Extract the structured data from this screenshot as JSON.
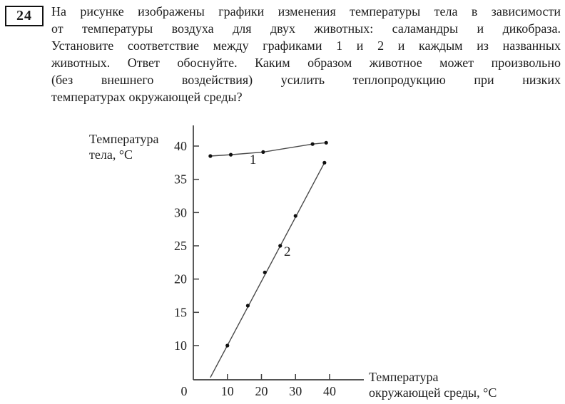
{
  "question": {
    "number": "24",
    "lines": [
      "На рисунке изображены графики изменения температуры тела в зависимости",
      "от температуры воздуха для двух животных: саламандры и дикобраза.",
      "Установите соответствие между графиками 1 и 2 и каждым из названных",
      "животных. Ответ обоснуйте. Каким образом животное может произвольно",
      "(без внешнего воздействия) усилить теплопродукцию при низких",
      "температурах окружающей среды?"
    ]
  },
  "chart_data": {
    "type": "line",
    "title": "",
    "ylabel_lines": [
      "Температура",
      "тела, °С"
    ],
    "xlabel_lines": [
      "Температура",
      "окружающей среды, °С"
    ],
    "x_ticks": [
      0,
      10,
      20,
      30,
      40
    ],
    "y_ticks": [
      10,
      15,
      20,
      25,
      30,
      35,
      40
    ],
    "xlim": [
      0,
      50
    ],
    "ylim": [
      4.8,
      42.9
    ],
    "grid": false,
    "legend_position": "inline-labels",
    "series": [
      {
        "name": "graph-1",
        "label": "1",
        "label_pos": {
          "x": 17.5,
          "y": 37.3
        },
        "x": [
          5,
          11,
          20.5,
          35,
          39
        ],
        "y": [
          38.5,
          38.7,
          39.1,
          40.3,
          40.5
        ],
        "line_x": [
          5,
          11,
          20.5,
          35,
          39
        ],
        "line_y": [
          38.5,
          38.7,
          39.1,
          40.3,
          40.5
        ]
      },
      {
        "name": "graph-2",
        "label": "2",
        "label_pos": {
          "x": 27.6,
          "y": 23.5
        },
        "x": [
          10,
          16,
          21,
          25.5,
          30,
          38.5
        ],
        "y": [
          10,
          16,
          21,
          25,
          29.5,
          37.5
        ],
        "line_x": [
          5,
          38.5
        ],
        "line_y": [
          5.2,
          37.5
        ]
      }
    ],
    "colors": {
      "axis": "#3d3d3d",
      "line": "#4a4a4a",
      "point": "#101010",
      "text": "#222222"
    }
  }
}
